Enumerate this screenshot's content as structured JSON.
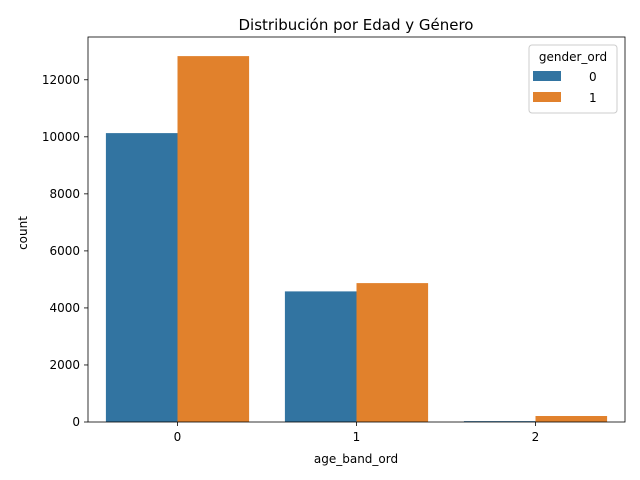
{
  "chart_data": {
    "type": "bar",
    "title": "Distribución por Edad y Género",
    "xlabel": "age_band_ord",
    "ylabel": "count",
    "categories": [
      "0",
      "1",
      "2"
    ],
    "ylim": [
      0,
      13500
    ],
    "yticks": [
      0,
      2000,
      4000,
      6000,
      8000,
      10000,
      12000
    ],
    "ytick_labels": [
      "0",
      "2000",
      "4000",
      "6000",
      "8000",
      "10000",
      "12000"
    ],
    "legend": {
      "title": "gender_ord",
      "placement": "top-right"
    },
    "series": [
      {
        "name": "0",
        "color": "#3274a1",
        "values": [
          10130,
          4580,
          30
        ]
      },
      {
        "name": "1",
        "color": "#e1812c",
        "values": [
          12830,
          4870,
          210
        ]
      }
    ],
    "grid": false
  }
}
